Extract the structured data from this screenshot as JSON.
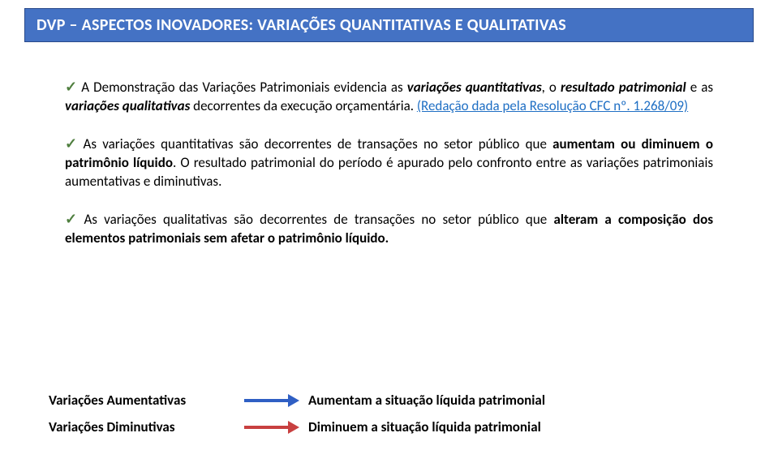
{
  "header": {
    "title": "DVP – ASPECTOS INOVADORES: VARIAÇÕES QUANTITATIVAS E QUALITATIVAS",
    "bg_color": "#4472c4",
    "text_color": "#ffffff"
  },
  "paragraphs": {
    "p1_a": "A Demonstração das Variações Patrimoniais evidencia as ",
    "p1_b": "variações quantitativas",
    "p1_c": ", o ",
    "p1_d": "resultado patrimonial",
    "p1_e": " e as ",
    "p1_f": "variações qualitativas",
    "p1_g": " decorrentes da execução orçamentária. ",
    "p1_h": "(Redação dada pela Resolução CFC nº. 1.268/09)",
    "p2_a": "As variações quantitativas são decorrentes de transações no setor público que ",
    "p2_b": "aumentam ou diminuem o patrimônio líquido",
    "p2_c": ". O resultado patrimonial do período é apurado pelo confronto entre as variações patrimoniais aumentativas e diminutivas.",
    "p3_a": "As variações qualitativas são decorrentes de transações no setor público que ",
    "p3_b": "alteram a composição dos elementos patrimoniais sem afetar o patrimônio líquido."
  },
  "rows": {
    "r1_label": "Variações Aumentativas",
    "r1_desc": "Aumentam a situação líquida patrimonial",
    "r1_color": "#2f5fc4",
    "r2_label": "Variações Diminutivas",
    "r2_desc": "Diminuem a situação líquida patrimonial",
    "r2_color": "#c84040"
  },
  "style": {
    "check_color": "#4f7f3f",
    "link_color": "#1f6fc4",
    "body_fontsize": 17,
    "header_fontsize": 20
  }
}
